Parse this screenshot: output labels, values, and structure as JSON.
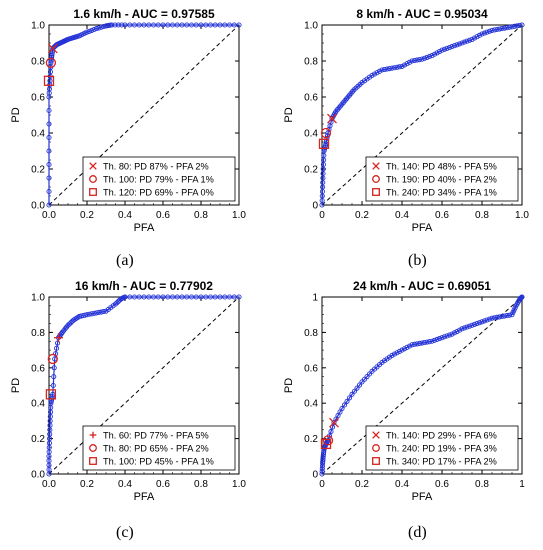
{
  "colors": {
    "curve": "#2433d6",
    "marker": "#d6241f",
    "axis": "#000000",
    "chance": "#000000"
  },
  "chart_data": [
    {
      "type": "line",
      "title": "1.6 km/h - AUC = 0.97585",
      "xlabel": "PFA",
      "ylabel": "PD",
      "xlim": [
        0,
        1
      ],
      "ylim": [
        0,
        1
      ],
      "xticks": [
        "0.0",
        "0.2",
        "0.4",
        "0.6",
        "0.8",
        "1.0"
      ],
      "yticks": [
        "0.0",
        "0.2",
        "0.4",
        "0.6",
        "0.8",
        "1.0"
      ],
      "panel_label": "(a)",
      "grid": false,
      "legend_position": "bottom-right",
      "series": [
        {
          "x": [
            0.0,
            0.0,
            0.0,
            0.005,
            0.01,
            0.015,
            0.02,
            0.04,
            0.06,
            0.08,
            0.1,
            0.13,
            0.16,
            0.2,
            0.25,
            0.3,
            0.33,
            0.4,
            0.5,
            0.6,
            0.7,
            0.8,
            0.9,
            1.0
          ],
          "y": [
            0.0,
            0.3,
            0.6,
            0.69,
            0.79,
            0.83,
            0.87,
            0.89,
            0.9,
            0.91,
            0.92,
            0.93,
            0.94,
            0.96,
            0.98,
            0.995,
            1.0,
            1.0,
            1.0,
            1.0,
            1.0,
            1.0,
            1.0,
            1.0
          ]
        }
      ],
      "markers": [
        {
          "symbol": "x",
          "label": "Th. 80: PD 87% - PFA 2%",
          "x": 0.02,
          "y": 0.87
        },
        {
          "symbol": "circle",
          "label": "Th. 100: PD 79% - PFA 1%",
          "x": 0.01,
          "y": 0.79
        },
        {
          "symbol": "square",
          "label": "Th. 120: PD 69% - PFA 0%",
          "x": 0.0,
          "y": 0.69
        }
      ]
    },
    {
      "type": "line",
      "title": "8 km/h - AUC = 0.95034",
      "xlabel": "PFA",
      "ylabel": "PD",
      "xlim": [
        0,
        1
      ],
      "ylim": [
        0,
        1
      ],
      "xticks": [
        "0",
        "0.2",
        "0.4",
        "0.6",
        "0.8",
        "1.0"
      ],
      "yticks": [
        "0",
        "0.2",
        "0.4",
        "0.6",
        "0.8",
        "1.0"
      ],
      "panel_label": "(b)",
      "grid": false,
      "legend_position": "bottom-right",
      "series": [
        {
          "x": [
            0.0,
            0.003,
            0.006,
            0.01,
            0.02,
            0.03,
            0.05,
            0.07,
            0.1,
            0.13,
            0.16,
            0.2,
            0.25,
            0.3,
            0.35,
            0.4,
            0.45,
            0.5,
            0.55,
            0.6,
            0.65,
            0.7,
            0.75,
            0.8,
            0.85,
            0.9,
            0.95,
            1.0
          ],
          "y": [
            0.0,
            0.1,
            0.2,
            0.3,
            0.34,
            0.4,
            0.48,
            0.52,
            0.56,
            0.6,
            0.64,
            0.68,
            0.72,
            0.75,
            0.76,
            0.77,
            0.8,
            0.81,
            0.83,
            0.86,
            0.88,
            0.9,
            0.92,
            0.95,
            0.97,
            0.98,
            0.99,
            1.0
          ]
        }
      ],
      "markers": [
        {
          "symbol": "x",
          "label": "Th. 140: PD 48% - PFA 5%",
          "x": 0.05,
          "y": 0.48
        },
        {
          "symbol": "circle",
          "label": "Th. 190: PD 40% - PFA 2%",
          "x": 0.02,
          "y": 0.4
        },
        {
          "symbol": "square",
          "label": "Th. 240: PD 34% - PFA 1%",
          "x": 0.01,
          "y": 0.34
        }
      ]
    },
    {
      "type": "line",
      "title": "16 km/h - AUC = 0.77902",
      "xlabel": "PFA",
      "ylabel": "PD",
      "xlim": [
        0,
        1
      ],
      "ylim": [
        0,
        1
      ],
      "xticks": [
        "0.0",
        "0.2",
        "0.4",
        "0.6",
        "0.8",
        "1.0"
      ],
      "yticks": [
        "0.0",
        "0.2",
        "0.4",
        "0.6",
        "0.8",
        "1.0"
      ],
      "panel_label": "(c)",
      "grid": false,
      "legend_position": "bottom-right",
      "series": [
        {
          "x": [
            0.0,
            0.0,
            0.003,
            0.006,
            0.01,
            0.02,
            0.03,
            0.05,
            0.07,
            0.1,
            0.13,
            0.16,
            0.2,
            0.25,
            0.3,
            0.35,
            0.38,
            0.4,
            0.5,
            0.6,
            0.7,
            0.8,
            0.9,
            1.0
          ],
          "y": [
            0.0,
            0.1,
            0.2,
            0.3,
            0.4,
            0.45,
            0.65,
            0.77,
            0.8,
            0.84,
            0.87,
            0.89,
            0.9,
            0.91,
            0.92,
            0.96,
            0.99,
            1.0,
            1.0,
            1.0,
            1.0,
            1.0,
            1.0,
            1.0
          ]
        }
      ],
      "markers": [
        {
          "symbol": "plus",
          "label": "Th. 60: PD 77% - PFA 5%",
          "x": 0.05,
          "y": 0.77
        },
        {
          "symbol": "circle",
          "label": "Th. 80: PD 65% - PFA 2%",
          "x": 0.02,
          "y": 0.65
        },
        {
          "symbol": "square",
          "label": "Th. 100: PD 45% - PFA 1%",
          "x": 0.01,
          "y": 0.45
        }
      ]
    },
    {
      "type": "line",
      "title": "24 km/h - AUC = 0.69051",
      "xlabel": "PFA",
      "ylabel": "PD",
      "xlim": [
        0,
        1
      ],
      "ylim": [
        0,
        1
      ],
      "xticks": [
        "0",
        "0.2",
        "0.4",
        "0.6",
        "0.8",
        "1"
      ],
      "yticks": [
        "0",
        "0.2",
        "0.4",
        "0.6",
        "0.8",
        "1"
      ],
      "panel_label": "(d)",
      "grid": false,
      "legend_position": "bottom-right",
      "series": [
        {
          "x": [
            0.0,
            0.003,
            0.006,
            0.01,
            0.02,
            0.03,
            0.06,
            0.1,
            0.15,
            0.2,
            0.25,
            0.3,
            0.35,
            0.4,
            0.45,
            0.5,
            0.55,
            0.6,
            0.65,
            0.7,
            0.75,
            0.8,
            0.85,
            0.9,
            0.95,
            0.97,
            0.99,
            1.0
          ],
          "y": [
            0.0,
            0.06,
            0.1,
            0.14,
            0.17,
            0.19,
            0.29,
            0.37,
            0.45,
            0.52,
            0.58,
            0.63,
            0.67,
            0.7,
            0.73,
            0.74,
            0.75,
            0.77,
            0.79,
            0.82,
            0.84,
            0.86,
            0.88,
            0.89,
            0.9,
            0.95,
            0.99,
            1.0
          ]
        }
      ],
      "markers": [
        {
          "symbol": "x",
          "label": "Th. 140: PD 29% - PFA 6%",
          "x": 0.06,
          "y": 0.29
        },
        {
          "symbol": "circle",
          "label": "Th. 240: PD 19% - PFA 3%",
          "x": 0.03,
          "y": 0.19
        },
        {
          "symbol": "square",
          "label": "Th. 340: PD 17% - PFA 2%",
          "x": 0.02,
          "y": 0.17
        }
      ]
    }
  ]
}
